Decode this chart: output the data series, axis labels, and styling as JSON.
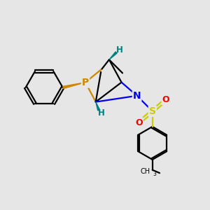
{
  "bg_color": "#e6e6e6",
  "atom_colors": {
    "P": "#cc8800",
    "N": "#0000ee",
    "S": "#cccc00",
    "O": "#ff0000",
    "H": "#008080",
    "C": "#000000"
  }
}
